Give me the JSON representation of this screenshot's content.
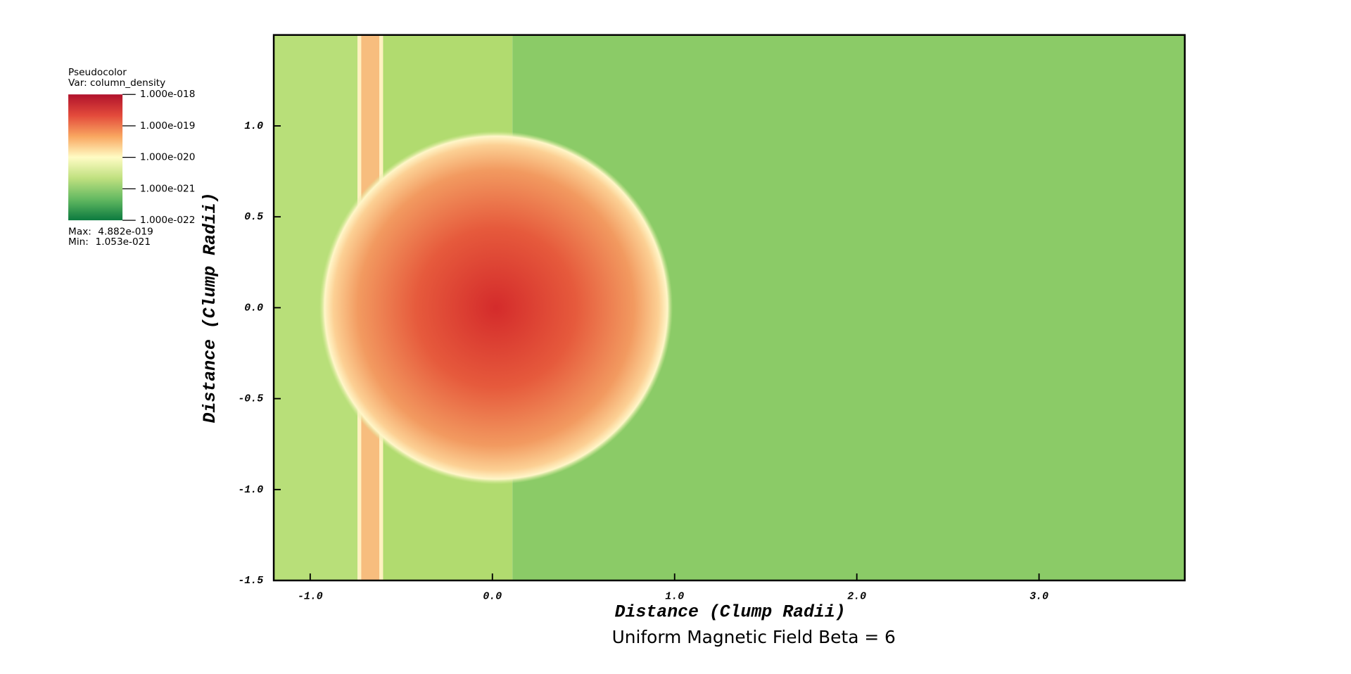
{
  "chart_data": {
    "type": "pseudocolor",
    "title": "Uniform Magnetic Field Beta = 6",
    "x_label": "Distance (Clump Radii)",
    "y_label": "Distance (Clump Radii)",
    "xlim": [
      -1.2,
      3.8
    ],
    "ylim": [
      -1.5,
      1.5
    ],
    "xticks": [
      {
        "value": -1,
        "label": "-1.0"
      },
      {
        "value": 0,
        "label": "0.0"
      },
      {
        "value": 1,
        "label": "1.0"
      },
      {
        "value": 2,
        "label": "2.0"
      },
      {
        "value": 3,
        "label": "3.0"
      }
    ],
    "yticks": [
      -1.5,
      {
        "value": -1,
        "label": "-1.0"
      },
      -0.5,
      {
        "value": 0,
        "label": "0.0"
      },
      0.5,
      {
        "value": 1,
        "label": "1.0"
      }
    ],
    "regions": [
      {
        "x": [
          -1.2,
          -0.74
        ],
        "color": "#b8df79"
      },
      {
        "x": [
          -0.74,
          -0.72
        ],
        "color": "#fff1c0"
      },
      {
        "x": [
          -0.72,
          -0.62
        ],
        "color": "#f7bd7e"
      },
      {
        "x": [
          -0.62,
          -0.6
        ],
        "color": "#fff1c0"
      },
      {
        "x": [
          -0.6,
          0.11
        ],
        "color": "#b1db6f"
      },
      {
        "x": [
          0.11,
          3.8
        ],
        "color": "#8bcb67"
      }
    ],
    "clump": {
      "center": [
        0.02,
        0
      ],
      "radius": 0.97,
      "colors": [
        "#d42b2b",
        "#e65a3c",
        "#f29a60",
        "#fcd094",
        "#fff6c8",
        "#d8eb9c"
      ]
    },
    "legend": {
      "plot_name": "Pseudocolor",
      "variable": "Var: column_density",
      "scale": "log",
      "ticks": [
        {
          "value": 1e-18,
          "label": "1.000e-018"
        },
        {
          "value": 1e-19,
          "label": "1.000e-019"
        },
        {
          "value": 1e-20,
          "label": "1.000e-020"
        },
        {
          "value": 1e-21,
          "label": "1.000e-021"
        },
        {
          "value": 1e-22,
          "label": "1.000e-022"
        }
      ],
      "colors": [
        "#b0122b",
        "#e34a3b",
        "#f9a660",
        "#fffcc4",
        "#bfe07f",
        "#63b961",
        "#0b7a3f"
      ],
      "max_label": "Max:",
      "max": "4.882e-019",
      "min_label": "Min:",
      "min": "1.053e-021"
    }
  }
}
